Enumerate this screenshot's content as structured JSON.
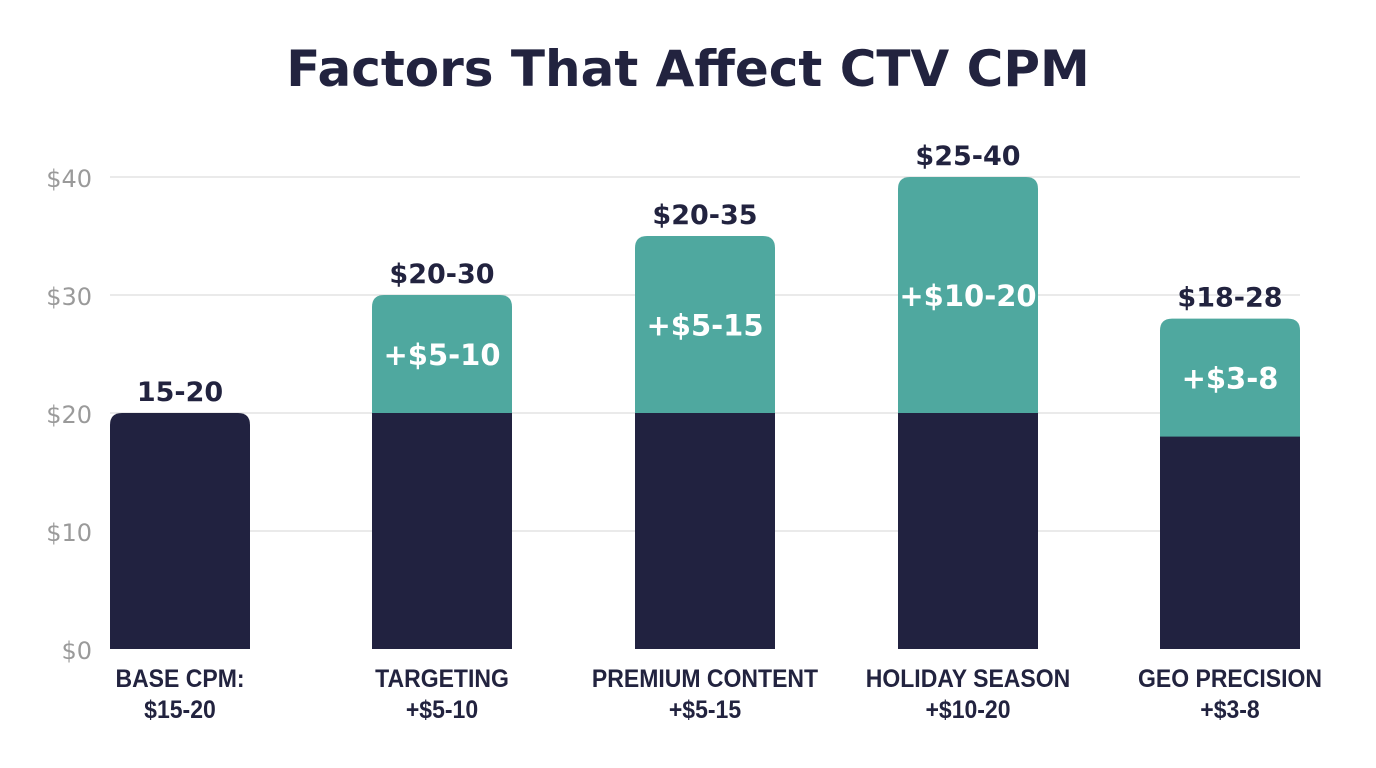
{
  "chart_data": {
    "type": "bar",
    "stacked": true,
    "title": "Factors That Affect CTV CPM",
    "xlabel": "",
    "ylabel": "",
    "ylim": [
      0,
      40
    ],
    "yticks": [
      "$0",
      "$10",
      "$20",
      "$30",
      "$40"
    ],
    "ytick_values": [
      0,
      10,
      20,
      30,
      40
    ],
    "grid": true,
    "categories": [
      {
        "line1": "BASE CPM:",
        "line2": "$15-20"
      },
      {
        "line1": "TARGETING",
        "line2": "+$5-10"
      },
      {
        "line1": "PREMIUM CONTENT",
        "line2": "+$5-15"
      },
      {
        "line1": "HOLIDAY SEASON",
        "line2": "+$10-20"
      },
      {
        "line1": "GEO PRECISION",
        "line2": "+$3-8"
      }
    ],
    "series": [
      {
        "values": [
          20,
          20,
          20,
          20,
          18
        ],
        "color": "#212240"
      },
      {
        "values": [
          0,
          10,
          15,
          20,
          10
        ],
        "color": "#4fa89f"
      }
    ],
    "total_labels": [
      "15-20",
      "$20-30",
      "$20-35",
      "$25-40",
      "$18-28"
    ],
    "increment_labels": [
      "",
      "+$5-10",
      "+$5-15",
      "+$10-20",
      "+$3-8"
    ]
  }
}
